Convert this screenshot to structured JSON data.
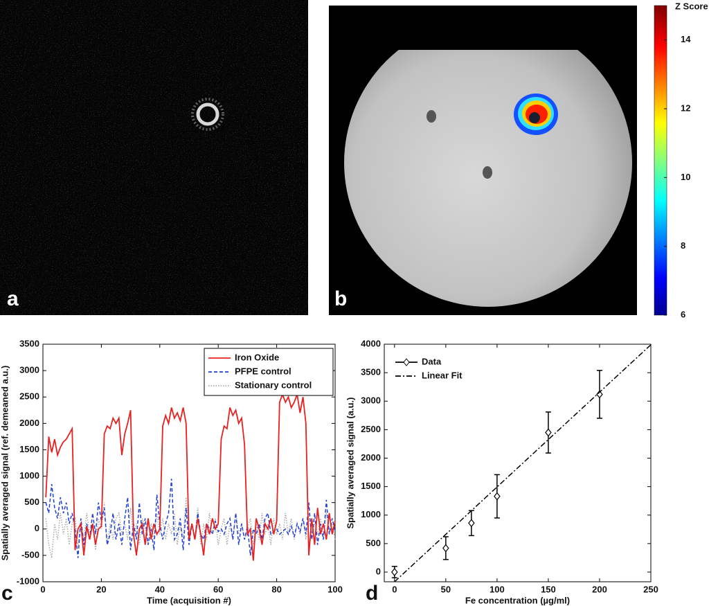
{
  "panel_labels": [
    "a",
    "b",
    "c",
    "d"
  ],
  "colorbar": {
    "title": "Z Score",
    "ylim": [
      6,
      15
    ],
    "yticks": [
      6,
      8,
      10,
      12,
      14
    ],
    "colormap": "jet"
  },
  "chart_data": [
    {
      "type": "line",
      "xlabel": "Time (acquisition #)",
      "ylabel": "Spatially averaged signal (ref. demeaned a.u.)",
      "xlim": [
        0,
        100
      ],
      "xticks": [
        0,
        20,
        40,
        60,
        80,
        100
      ],
      "ylim": [
        -1000,
        3500
      ],
      "yticks": [
        -1000,
        -500,
        0,
        500,
        1000,
        1500,
        2000,
        2500,
        3000,
        3500
      ],
      "legend": "upper right",
      "x": [
        1,
        2,
        3,
        4,
        5,
        6,
        7,
        8,
        9,
        10,
        11,
        12,
        13,
        14,
        15,
        16,
        17,
        18,
        19,
        20,
        21,
        22,
        23,
        24,
        25,
        26,
        27,
        28,
        29,
        30,
        31,
        32,
        33,
        34,
        35,
        36,
        37,
        38,
        39,
        40,
        41,
        42,
        43,
        44,
        45,
        46,
        47,
        48,
        49,
        50,
        51,
        52,
        53,
        54,
        55,
        56,
        57,
        58,
        59,
        60,
        61,
        62,
        63,
        64,
        65,
        66,
        67,
        68,
        69,
        70,
        71,
        72,
        73,
        74,
        75,
        76,
        77,
        78,
        79,
        80,
        81,
        82,
        83,
        84,
        85,
        86,
        87,
        88,
        89,
        90,
        91,
        92,
        93,
        94,
        95,
        96,
        97,
        98,
        99,
        100
      ],
      "series": [
        {
          "name": "Stationary control",
          "color": "#aaaaaa",
          "dash": "dotted",
          "in_legend_order": 2,
          "values": [
            200,
            -300,
            -550,
            100,
            -200,
            300,
            -100,
            200,
            -300,
            100,
            200,
            -300,
            100,
            -200,
            300,
            -100,
            100,
            -400,
            200,
            0,
            500,
            -300,
            100,
            -200,
            200,
            300,
            -100,
            100,
            -200,
            400,
            -200,
            100,
            -300,
            200,
            0,
            -300,
            100,
            -200,
            300,
            -100,
            200,
            -200,
            100,
            -100,
            300,
            -300,
            100,
            -200,
            600,
            -100,
            100,
            -200,
            400,
            -300,
            100,
            -200,
            300,
            -100,
            200,
            -300,
            0,
            200,
            -300,
            100,
            -200,
            300,
            -100,
            100,
            -200,
            0,
            200,
            -300,
            100,
            -200,
            300,
            -100,
            100,
            -300,
            200,
            -100,
            100,
            -200,
            300,
            -100,
            200,
            -200,
            100,
            -100,
            200,
            -200,
            300,
            -200,
            100,
            -100,
            200,
            -200,
            300,
            -100,
            100,
            -200
          ]
        },
        {
          "name": "PFPE control",
          "color": "#1f3fd6",
          "dash": "dashed",
          "in_legend_order": 1,
          "values": [
            500,
            300,
            850,
            400,
            200,
            600,
            300,
            500,
            100,
            300,
            0,
            -550,
            200,
            -300,
            100,
            -200,
            300,
            -100,
            500,
            150,
            400,
            -300,
            -100,
            300,
            -200,
            100,
            -300,
            200,
            600,
            -400,
            100,
            -200,
            500,
            -100,
            200,
            -300,
            0,
            -400,
            650,
            100,
            -200,
            100,
            300,
            950,
            -200,
            -100,
            200,
            -400,
            400,
            -300,
            100,
            -200,
            300,
            -100,
            -200,
            100,
            0,
            -100,
            150,
            -50,
            0,
            -100,
            100,
            200,
            -200,
            300,
            -300,
            100,
            -200,
            50,
            -500,
            0,
            -100,
            100,
            -200,
            200,
            300,
            -100,
            -50,
            0,
            -100,
            -50,
            0,
            -100,
            50,
            -150,
            100,
            -50,
            200,
            -100,
            500,
            -200,
            300,
            -300,
            100,
            -200,
            550,
            -100,
            200,
            -50
          ]
        },
        {
          "name": "Iron Oxide",
          "color": "#e8201f",
          "dash": "solid",
          "in_legend_order": 0,
          "values": [
            600,
            1750,
            1450,
            1700,
            1400,
            1550,
            1650,
            1700,
            1800,
            1900,
            -400,
            0,
            100,
            -500,
            50,
            -200,
            100,
            -300,
            0,
            50,
            1800,
            1950,
            1900,
            2100,
            2000,
            2100,
            1400,
            1800,
            2000,
            2250,
            -100,
            -500,
            0,
            100,
            -300,
            200,
            -200,
            100,
            -100,
            0,
            1950,
            2150,
            2000,
            2300,
            2100,
            2200,
            2050,
            2300,
            2000,
            -200,
            100,
            -200,
            200,
            -100,
            -500,
            100,
            -100,
            200,
            0,
            100,
            1700,
            1950,
            1900,
            2300,
            2150,
            2250,
            2000,
            2100,
            1600,
            -100,
            0,
            -600,
            200,
            0,
            -300,
            100,
            0,
            200,
            -100,
            150,
            2400,
            2550,
            2400,
            2500,
            2300,
            2400,
            2550,
            2200,
            2500,
            2000,
            -500,
            200,
            -300,
            400,
            -100,
            100,
            -200,
            300,
            -100,
            150
          ]
        }
      ]
    },
    {
      "type": "errorbar",
      "xlabel": "Fe concentration (µg/ml)",
      "ylabel": "Spatially averaged signal (a.u.)",
      "xlim": [
        -10,
        250
      ],
      "xticks": [
        0,
        50,
        100,
        150,
        200,
        250
      ],
      "ylim": [
        -170,
        4000
      ],
      "yticks": [
        0,
        500,
        1000,
        1500,
        2000,
        2500,
        3000,
        3500,
        4000
      ],
      "legend": "upper left",
      "series": [
        {
          "name": "Data",
          "color": "#000000",
          "dash": "solid",
          "marker": "diamond",
          "x": [
            0,
            50,
            75,
            100,
            150,
            200
          ],
          "values": [
            0,
            420,
            860,
            1330,
            2450,
            3120
          ],
          "errors": [
            100,
            200,
            220,
            380,
            360,
            420
          ]
        },
        {
          "name": "Linear Fit",
          "color": "#000000",
          "dash": "dashdot",
          "x": [
            0,
            250
          ],
          "values": [
            -170,
            3990
          ]
        }
      ]
    }
  ]
}
